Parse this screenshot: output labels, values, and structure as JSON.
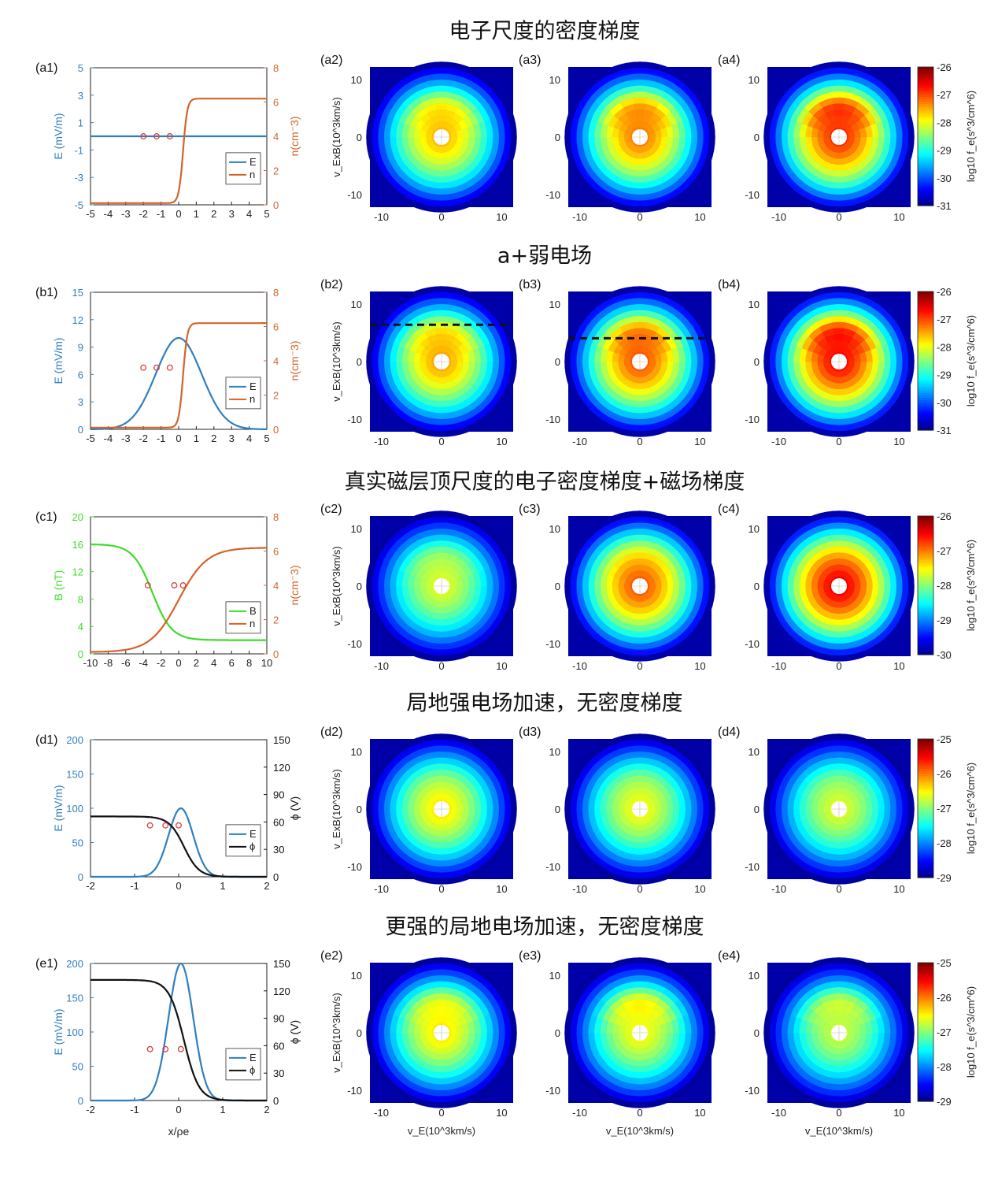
{
  "colors": {
    "blue": "#2f7fbf",
    "orange": "#d2642a",
    "green": "#3fdc2a",
    "black": "#111111",
    "marker": "#d9413a"
  },
  "axis_labels": {
    "vy": "v_ExB(10^3km/s)",
    "vx": "v_E(10^3km/s)",
    "cb": "log10 f_e(s^3/cm^6)",
    "x_bottom": "x/ρe"
  },
  "rows": [
    {
      "title": "电子尺度的密度梯度",
      "line_panel": {
        "label": "(a1)",
        "left_label": "E (mV/m)",
        "right_label": "n(cm⁻3)",
        "left_ticks": [
          "-5",
          "-3",
          "-1",
          "1",
          "3",
          "5"
        ],
        "right_ticks": [
          "0",
          "2",
          "4",
          "6",
          "8"
        ],
        "x_ticks": [
          "-5",
          "-4",
          "-3",
          "-2",
          "-1",
          "0",
          "1",
          "2",
          "3",
          "4",
          "5"
        ],
        "legend": [
          "E",
          "n"
        ]
      },
      "vdf_labels": [
        "(a2)",
        "(a3)",
        "(a4)"
      ],
      "colorbar_ticks": [
        "-26",
        "-27",
        "-28",
        "-29",
        "-30",
        "-31"
      ]
    },
    {
      "title": "a+弱电场",
      "line_panel": {
        "label": "(b1)",
        "left_label": "E (mV/m)",
        "right_label": "n(cm⁻3)",
        "left_ticks": [
          "0",
          "3",
          "6",
          "9",
          "12",
          "15"
        ],
        "right_ticks": [
          "0",
          "2",
          "4",
          "6",
          "8"
        ],
        "x_ticks": [
          "-5",
          "-4",
          "-3",
          "-2",
          "-1",
          "0",
          "1",
          "2",
          "3",
          "4",
          "5"
        ],
        "legend": [
          "E",
          "n"
        ]
      },
      "vdf_labels": [
        "(b2)",
        "(b3)",
        "(b4)"
      ],
      "colorbar_ticks": [
        "-26",
        "-27",
        "-28",
        "-29",
        "-30",
        "-31"
      ]
    },
    {
      "title": "真实磁层顶尺度的电子密度梯度+磁场梯度",
      "line_panel": {
        "label": "(c1)",
        "left_label": "B (nT)",
        "right_label": "n(cm⁻3)",
        "left_ticks": [
          "0",
          "4",
          "8",
          "12",
          "16",
          "20"
        ],
        "right_ticks": [
          "0",
          "2",
          "4",
          "6",
          "8"
        ],
        "x_ticks": [
          "-10",
          "-8",
          "-6",
          "-4",
          "-2",
          "0",
          "2",
          "4",
          "6",
          "8",
          "10"
        ],
        "legend": [
          "B",
          "n"
        ]
      },
      "vdf_labels": [
        "(c2)",
        "(c3)",
        "(c4)"
      ],
      "colorbar_ticks": [
        "-26",
        "-27",
        "-28",
        "-29",
        "-30"
      ]
    },
    {
      "title": "局地强电场加速，无密度梯度",
      "line_panel": {
        "label": "(d1)",
        "left_label": "E (mV/m)",
        "right_label": "ϕ (V)",
        "left_ticks": [
          "0",
          "50",
          "100",
          "150",
          "200"
        ],
        "right_ticks": [
          "0",
          "30",
          "60",
          "90",
          "120",
          "150"
        ],
        "x_ticks": [
          "-2",
          "-1",
          "0",
          "1",
          "2"
        ],
        "legend": [
          "E",
          "ϕ"
        ]
      },
      "vdf_labels": [
        "(d2)",
        "(d3)",
        "(d4)"
      ],
      "colorbar_ticks": [
        "-25",
        "-26",
        "-27",
        "-28",
        "-29"
      ]
    },
    {
      "title": "更强的局地电场加速，无密度梯度",
      "line_panel": {
        "label": "(e1)",
        "left_label": "E (mV/m)",
        "right_label": "ϕ (V)",
        "left_ticks": [
          "0",
          "50",
          "100",
          "150",
          "200"
        ],
        "right_ticks": [
          "0",
          "30",
          "60",
          "90",
          "120",
          "150"
        ],
        "x_ticks": [
          "-2",
          "-1",
          "0",
          "1",
          "2"
        ],
        "legend": [
          "E",
          "ϕ"
        ]
      },
      "vdf_labels": [
        "(e2)",
        "(e3)",
        "(e4)"
      ],
      "colorbar_ticks": [
        "-25",
        "-26",
        "-27",
        "-28",
        "-29"
      ]
    }
  ],
  "vdf_ticks": [
    "-10",
    "0",
    "10"
  ],
  "chart_data": [
    {
      "type": "line",
      "panel": "(a1)",
      "x_range": [
        -5,
        5
      ],
      "left_range": [
        -5,
        5
      ],
      "right_range": [
        0,
        8
      ],
      "series": [
        {
          "name": "E",
          "axis": "left",
          "profile": "constant",
          "value": 0
        },
        {
          "name": "n",
          "axis": "right",
          "profile": "step",
          "low": 0.1,
          "high": 6.2,
          "center": 0.25,
          "width": 0.12
        }
      ],
      "markers_x": [
        -2,
        -1.25,
        -0.5
      ],
      "markers_y": 4
    },
    {
      "type": "line",
      "panel": "(b1)",
      "x_range": [
        -5,
        5
      ],
      "left_range": [
        0,
        15
      ],
      "right_range": [
        0,
        8
      ],
      "series": [
        {
          "name": "E",
          "axis": "left",
          "profile": "gaussian",
          "peak": 10,
          "center": 0,
          "sigma": 1.3
        },
        {
          "name": "n",
          "axis": "right",
          "profile": "step",
          "low": 0.1,
          "high": 6.2,
          "center": 0.25,
          "width": 0.12
        }
      ],
      "markers_x": [
        -2,
        -1.25,
        -0.5
      ],
      "markers_y": 3.6
    },
    {
      "type": "line",
      "panel": "(c1)",
      "x_range": [
        -10,
        10
      ],
      "left_range": [
        0,
        20
      ],
      "right_range": [
        0,
        8
      ],
      "series": [
        {
          "name": "B",
          "axis": "left",
          "profile": "decreasing",
          "high": 16,
          "low": 2,
          "center": -3,
          "width": 1.1
        },
        {
          "name": "n",
          "axis": "right",
          "profile": "step",
          "low": 0.1,
          "high": 6.2,
          "center": 0,
          "width": 1.6
        }
      ],
      "markers_x": [
        -3.5,
        -0.5,
        0.5
      ],
      "markers_y": 4
    },
    {
      "type": "line",
      "panel": "(d1)",
      "x_range": [
        -2,
        2
      ],
      "left_range": [
        0,
        200
      ],
      "right_range": [
        0,
        150
      ],
      "series": [
        {
          "name": "E",
          "axis": "left",
          "profile": "gaussian",
          "peak": 100,
          "center": 0.05,
          "sigma": 0.28
        },
        {
          "name": "ϕ",
          "axis": "right",
          "profile": "decreasing",
          "high": 66,
          "low": 0,
          "center": 0.12,
          "width": 0.17
        }
      ],
      "markers_x": [
        -0.65,
        -0.3,
        0
      ],
      "markers_y": 75
    },
    {
      "type": "line",
      "panel": "(e1)",
      "x_range": [
        -2,
        2
      ],
      "left_range": [
        0,
        200
      ],
      "right_range": [
        0,
        150
      ],
      "series": [
        {
          "name": "E",
          "axis": "left",
          "profile": "gaussian",
          "peak": 200,
          "center": 0.05,
          "sigma": 0.28
        },
        {
          "name": "ϕ",
          "axis": "right",
          "profile": "decreasing",
          "high": 132,
          "low": 0,
          "center": 0.12,
          "width": 0.17
        }
      ],
      "markers_x": [
        -0.65,
        -0.3,
        0.05
      ],
      "markers_y": 75
    },
    {
      "type": "heatmap",
      "panel": "VDF panels",
      "x_range": [
        -12,
        12
      ],
      "y_range": [
        -12,
        12
      ],
      "vmax_rows": [
        -26,
        -26,
        -26,
        -25,
        -25
      ],
      "vmin_rows": [
        -31,
        -31,
        -30,
        -29,
        -29
      ],
      "peaks": [
        [
          -27.5,
          -27.2,
          -26.8
        ],
        [
          -27.4,
          -27.0,
          -26.6
        ],
        [
          -27.6,
          -26.8,
          -26.4
        ],
        [
          -26.4,
          -26.5,
          -26.6
        ],
        [
          -26.4,
          -26.5,
          -26.7
        ]
      ],
      "crescent_strength": [
        [
          0.6,
          0.8,
          1.0
        ],
        [
          0.6,
          0.8,
          1.0
        ],
        [
          0.3,
          0.2,
          0.1
        ],
        [
          0.1,
          0.15,
          0.15
        ],
        [
          0.5,
          0.7,
          0.6
        ]
      ],
      "dashed_y": [
        {
          "panel": "(b2)",
          "y": 6.3
        },
        {
          "panel": "(b3)",
          "y": 4.0
        }
      ]
    }
  ]
}
